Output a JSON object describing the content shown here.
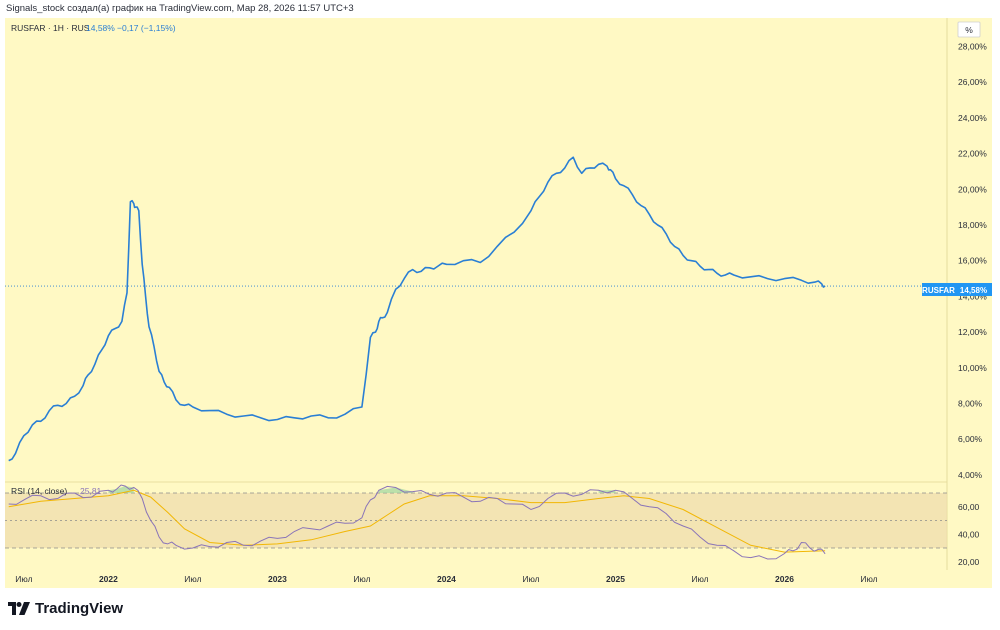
{
  "header": {
    "caption": "Signals_stock создал(а) график на TradingView.com, Мар 28, 2026 11:57 UTC+3"
  },
  "legend": {
    "symbol": "RUSFAR · 1H · RUS",
    "value": "14,58%",
    "change": "−0,17 (−1,15%)"
  },
  "rsi_legend": {
    "label": "RSI (14, close)",
    "value": "25,81"
  },
  "scale_unit": "%",
  "price_tag": {
    "symbol": "RUSFAR",
    "value": "14,58%"
  },
  "footer": {
    "logo_text": "TradingView"
  },
  "colors": {
    "line": "#2a7fd4",
    "rsi_line": "#8a74b8",
    "rsi_ma": "#f2b705",
    "tag": "#2196f3",
    "pane": "#fff9c4"
  },
  "chart_data": [
    {
      "type": "line",
      "title": "RUSFAR · 1H · RUS",
      "ylabel": "%",
      "x_ticks": [
        "Июл",
        "2022",
        "Июл",
        "2023",
        "Июл",
        "2024",
        "Июл",
        "2025",
        "Июл",
        "2026",
        "Июл"
      ],
      "y_ticks": [
        "4,00%",
        "6,00%",
        "8,00%",
        "10,00%",
        "12,00%",
        "14,00%",
        "16,00%",
        "18,00%",
        "20,00%",
        "22,00%",
        "24,00%",
        "26,00%",
        "28,00%"
      ],
      "ylim": [
        3.6,
        29.6
      ],
      "x_range": [
        2021.4,
        2026.92
      ],
      "last_value": 14.58,
      "series": [
        {
          "name": "RUSFAR",
          "x": [
            2021.41,
            2021.45,
            2021.5,
            2021.55,
            2021.6,
            2021.65,
            2021.7,
            2021.75,
            2021.8,
            2021.85,
            2021.88,
            2021.92,
            2021.96,
            2022.0,
            2022.04,
            2022.08,
            2022.11,
            2022.13,
            2022.15,
            2022.16,
            2022.18,
            2022.2,
            2022.22,
            2022.24,
            2022.27,
            2022.3,
            2022.33,
            2022.36,
            2022.4,
            2022.45,
            2022.5,
            2022.6,
            2022.7,
            2022.8,
            2022.9,
            2023.0,
            2023.1,
            2023.2,
            2023.3,
            2023.4,
            2023.5,
            2023.55,
            2023.58,
            2023.6,
            2023.62,
            2023.65,
            2023.7,
            2023.75,
            2023.8,
            2023.85,
            2023.9,
            2023.95,
            2024.0,
            2024.1,
            2024.2,
            2024.3,
            2024.4,
            2024.5,
            2024.55,
            2024.6,
            2024.65,
            2024.7,
            2024.75,
            2024.8,
            2024.85,
            2024.9,
            2024.95,
            2024.97,
            2025.0,
            2025.05,
            2025.1,
            2025.15,
            2025.2,
            2025.25,
            2025.3,
            2025.35,
            2025.4,
            2025.45,
            2025.5,
            2025.55,
            2025.6,
            2025.65,
            2025.7,
            2025.8,
            2025.9,
            2026.0,
            2026.1,
            2026.18,
            2026.22,
            2026.24
          ],
          "values": [
            4.8,
            5.2,
            6.2,
            6.8,
            7.0,
            7.6,
            7.9,
            8.0,
            8.4,
            9.0,
            9.6,
            10.2,
            11.0,
            11.8,
            12.2,
            12.6,
            14.2,
            19.3,
            19.2,
            19.0,
            18.8,
            15.8,
            14.0,
            12.3,
            11.2,
            9.8,
            9.2,
            8.9,
            8.2,
            7.9,
            7.8,
            7.6,
            7.4,
            7.3,
            7.2,
            7.1,
            7.2,
            7.3,
            7.2,
            7.4,
            7.8,
            11.7,
            12.0,
            12.6,
            12.8,
            13.1,
            14.4,
            15.0,
            15.5,
            15.4,
            15.6,
            15.7,
            15.8,
            16.0,
            15.9,
            16.8,
            17.6,
            18.8,
            19.6,
            20.4,
            20.9,
            21.2,
            21.8,
            20.9,
            21.2,
            21.4,
            21.3,
            21.1,
            20.6,
            20.2,
            19.7,
            19.1,
            18.6,
            18.0,
            17.5,
            16.8,
            16.3,
            16.0,
            15.7,
            15.5,
            15.3,
            15.2,
            15.2,
            15.1,
            15.0,
            15.0,
            14.9,
            14.8,
            14.7,
            14.58
          ]
        }
      ]
    },
    {
      "type": "line",
      "title": "RSI (14, close)",
      "y_ticks": [
        "20,00",
        "40,00",
        "60,00"
      ],
      "ylim": [
        14,
        78
      ],
      "levels": [
        30,
        50,
        70
      ],
      "last_value": 25.81,
      "series": [
        {
          "name": "RSI",
          "x": [
            2021.41,
            2021.5,
            2021.6,
            2021.7,
            2021.8,
            2021.9,
            2022.0,
            2022.05,
            2022.1,
            2022.15,
            2022.2,
            2022.25,
            2022.3,
            2022.35,
            2022.4,
            2022.5,
            2022.6,
            2022.7,
            2022.8,
            2022.9,
            2023.0,
            2023.1,
            2023.2,
            2023.3,
            2023.4,
            2023.5,
            2023.55,
            2023.6,
            2023.7,
            2023.8,
            2023.9,
            2024.0,
            2024.1,
            2024.2,
            2024.3,
            2024.4,
            2024.5,
            2024.6,
            2024.7,
            2024.8,
            2024.9,
            2025.0,
            2025.1,
            2025.2,
            2025.3,
            2025.4,
            2025.5,
            2025.6,
            2025.7,
            2025.8,
            2025.9,
            2026.0,
            2026.05,
            2026.1,
            2026.15,
            2026.2,
            2026.24
          ],
          "values": [
            62,
            65,
            68,
            66,
            70,
            67,
            72,
            73,
            75,
            74,
            66,
            50,
            38,
            33,
            32,
            30,
            31,
            34,
            32,
            35,
            37,
            42,
            44,
            46,
            48,
            52,
            65,
            72,
            74,
            71,
            69,
            70,
            67,
            64,
            66,
            62,
            58,
            66,
            70,
            69,
            72,
            72,
            66,
            60,
            55,
            46,
            38,
            32,
            28,
            23,
            22,
            26,
            28,
            34,
            30,
            29,
            25.81
          ]
        },
        {
          "name": "RSI-based MA",
          "x": [
            2021.41,
            2021.6,
            2021.8,
            2022.0,
            2022.15,
            2022.25,
            2022.35,
            2022.45,
            2022.6,
            2022.8,
            2023.0,
            2023.2,
            2023.4,
            2023.55,
            2023.65,
            2023.75,
            2023.9,
            2024.1,
            2024.3,
            2024.5,
            2024.7,
            2024.9,
            2025.05,
            2025.2,
            2025.4,
            2025.6,
            2025.8,
            2026.0,
            2026.24
          ],
          "values": [
            60,
            64,
            66,
            68,
            72,
            67,
            56,
            44,
            34,
            32,
            33,
            36,
            42,
            46,
            54,
            62,
            68,
            68,
            66,
            63,
            63,
            66,
            68,
            66,
            58,
            45,
            32,
            27,
            28
          ]
        }
      ]
    }
  ]
}
